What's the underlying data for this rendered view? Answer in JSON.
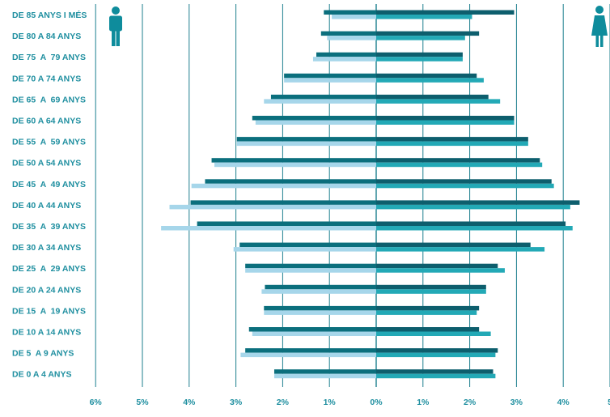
{
  "chart_data": {
    "type": "bar",
    "orientation": "horizontal",
    "layout": "population-pyramid",
    "categories": [
      "DE 85 ANYS I MÉS",
      "DE 80 A 84 ANYS",
      "DE 75  A  79 ANYS",
      "DE 70 A 74 ANYS",
      "DE 65  A  69 ANYS",
      "DE 60 A 64 ANYS",
      "DE 55  A  59 ANYS",
      "DE 50 A 54 ANYS",
      "DE 45  A  49 ANYS",
      "DE 40 A 44 ANYS",
      "DE 35  A  39 ANYS",
      "DE 30 A 34 ANYS",
      "DE 25  A  29 ANYS",
      "DE 20 A 24 ANYS",
      "DE 15  A  19 ANYS",
      "DE 10 A 14 ANYS",
      "DE 5  A 9 ANYS",
      "DE 0 A 4 ANYS"
    ],
    "series": [
      {
        "side": "left",
        "icon": "man-icon",
        "layer": "dark",
        "color": "#0b6f7d",
        "values": [
          1.12,
          1.18,
          1.28,
          1.97,
          2.25,
          2.65,
          2.98,
          3.52,
          3.66,
          3.97,
          3.83,
          2.92,
          2.8,
          2.38,
          2.4,
          2.72,
          2.8,
          2.18
        ]
      },
      {
        "side": "left",
        "icon": "man-icon",
        "layer": "light",
        "color": "#a6d6ea",
        "values": [
          0.95,
          1.05,
          1.35,
          1.97,
          2.4,
          2.58,
          2.98,
          3.46,
          3.95,
          4.42,
          4.6,
          3.05,
          2.8,
          2.45,
          2.4,
          2.65,
          2.9,
          2.18
        ]
      },
      {
        "side": "right",
        "icon": "woman-icon",
        "layer": "dark",
        "color": "#0d5e6d",
        "values": [
          2.95,
          2.2,
          1.85,
          2.15,
          2.4,
          2.95,
          3.25,
          3.5,
          3.75,
          4.35,
          4.05,
          3.3,
          2.6,
          2.35,
          2.2,
          2.2,
          2.6,
          2.5
        ]
      },
      {
        "side": "right",
        "icon": "woman-icon",
        "layer": "light",
        "color": "#23a9b6",
        "values": [
          2.05,
          1.9,
          1.85,
          2.3,
          2.65,
          2.95,
          3.25,
          3.55,
          3.8,
          4.15,
          4.2,
          3.6,
          2.75,
          2.35,
          2.15,
          2.45,
          2.55,
          2.55
        ]
      }
    ],
    "xticks": [
      "6%",
      "5%",
      "4%",
      "3%",
      "2%",
      "1%",
      "0%",
      "1%",
      "2%",
      "3%",
      "4%",
      "5"
    ],
    "xlim_left": 6,
    "xlim_right": 5,
    "grid": "vertical",
    "colors": {
      "axis_text": "#1f8fa0",
      "gridline": "#1d7f8e",
      "icon": "#0e8c9c"
    }
  }
}
